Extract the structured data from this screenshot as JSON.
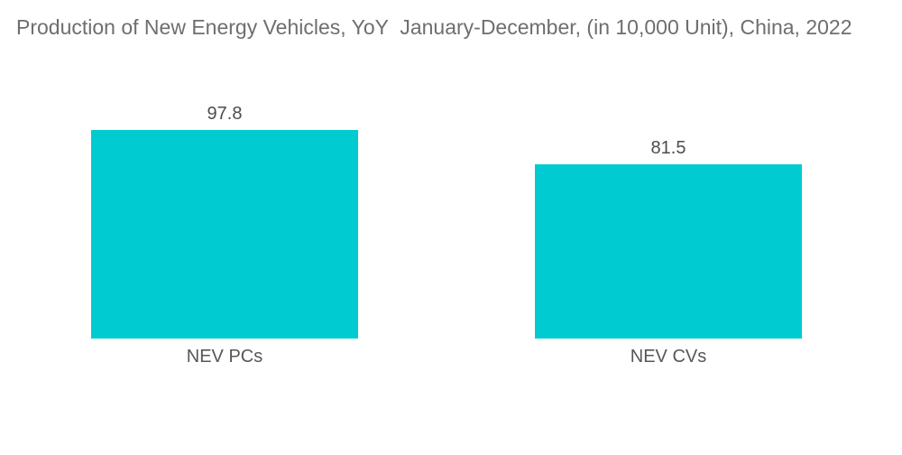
{
  "page": {
    "background": "#ffffff"
  },
  "chart_data": {
    "type": "bar",
    "title": "Production of New Energy Vehicles, YoY  January-December, (in 10,000 Unit), China, 2022",
    "categories": [
      "NEV PCs",
      "NEV CVs"
    ],
    "values": [
      97.8,
      81.5
    ],
    "value_labels": [
      "97.8",
      "81.5"
    ],
    "ylim": [
      0,
      97.8
    ],
    "xlabel": "",
    "ylabel": "",
    "grid": false,
    "legend": false,
    "axes_visible": false,
    "bar_color": "#00cbd1",
    "title_color": "#6e6e6e",
    "value_label_color": "#4d4d4d",
    "category_label_color": "#575757",
    "background": "#ffffff"
  }
}
